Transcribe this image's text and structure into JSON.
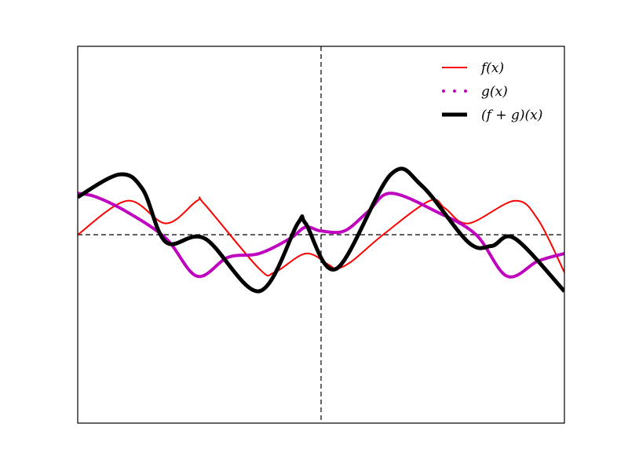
{
  "chart_data": {
    "type": "line",
    "title": "",
    "xlabel": "",
    "ylabel": "",
    "xlim": [
      -3.14,
      3.14
    ],
    "ylim": [
      -2.5,
      2.5
    ],
    "ticks_visible": false,
    "grid": false,
    "reference_lines": {
      "x": 0,
      "y": 0,
      "style": "dashed",
      "color": "#000000"
    },
    "legend": {
      "position": "top-right",
      "frameless": true
    },
    "series": [
      {
        "name": "f(x)",
        "color": "#ff0000",
        "style": "solid",
        "x": [
          -3.14,
          -2.5,
          -2.0,
          -1.6,
          -1.5,
          -0.8,
          -0.6,
          -0.2,
          0.1,
          0.2,
          0.4,
          0.8,
          1.4,
          1.6,
          1.9,
          2.5,
          2.8,
          3.14
        ],
        "y": [
          0.0,
          0.45,
          0.15,
          0.45,
          0.4,
          -0.45,
          -0.5,
          -0.25,
          -0.4,
          -0.45,
          -0.35,
          0.0,
          0.45,
          0.35,
          0.15,
          0.45,
          0.2,
          -0.5
        ]
      },
      {
        "name": "g(x)",
        "color": "#bf00bf",
        "style": "dotted",
        "x": [
          -3.14,
          -2.9,
          -2.5,
          -2.0,
          -1.6,
          -1.2,
          -0.8,
          -0.4,
          -0.2,
          0.0,
          0.3,
          0.6,
          0.9,
          1.5,
          2.0,
          2.4,
          2.8,
          3.14
        ],
        "y": [
          0.55,
          0.5,
          0.3,
          -0.05,
          -0.55,
          -0.3,
          -0.25,
          -0.05,
          0.1,
          0.05,
          0.05,
          0.3,
          0.55,
          0.3,
          0.0,
          -0.55,
          -0.35,
          -0.25
        ]
      },
      {
        "name": "(f + g)(x)",
        "color": "#000000",
        "style": "solid",
        "x": [
          -3.14,
          -2.6,
          -2.3,
          -2.0,
          -1.5,
          -0.8,
          -0.3,
          -0.2,
          0.2,
          0.9,
          1.3,
          1.9,
          2.2,
          2.5,
          3.14
        ],
        "y": [
          0.5,
          0.8,
          0.6,
          -0.1,
          -0.05,
          -0.75,
          0.15,
          0.15,
          -0.45,
          0.8,
          0.65,
          -0.1,
          -0.15,
          -0.05,
          -0.75
        ]
      }
    ]
  }
}
